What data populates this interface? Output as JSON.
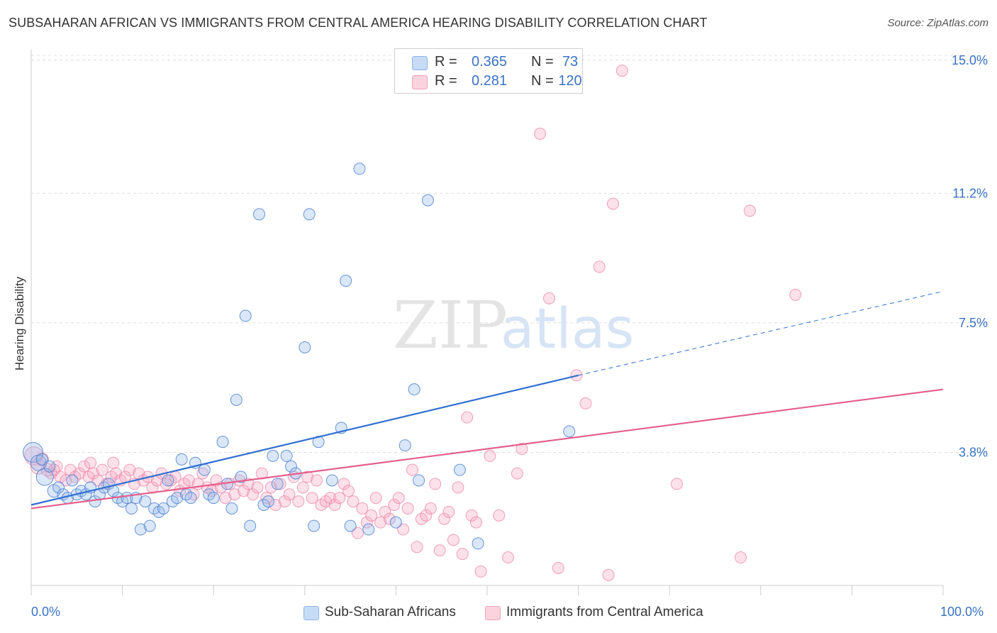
{
  "title": "SUBSAHARAN AFRICAN VS IMMIGRANTS FROM CENTRAL AMERICA HEARING DISABILITY CORRELATION CHART",
  "source": "Source: ZipAtlas.com",
  "watermark": {
    "zip": "ZIP",
    "atlas": "atlas"
  },
  "stats": {
    "row1": {
      "r_label": "R =",
      "r_value": "0.365",
      "n_label": "N =",
      "n_value": "73",
      "color": "#a9c8f0"
    },
    "row2": {
      "r_label": "R =",
      "r_value": "0.281",
      "n_label": "N =",
      "n_value": "120",
      "color": "#f5b8ca"
    }
  },
  "legend": {
    "series1": "Sub-Saharan Africans",
    "series2": "Immigrants from Central America"
  },
  "x_min_label": "0.0%",
  "x_max_label": "100.0%",
  "chart_data": {
    "type": "scatter",
    "title": "SUBSAHARAN AFRICAN VS IMMIGRANTS FROM CENTRAL AMERICA HEARING DISABILITY CORRELATION CHART",
    "xlabel": "",
    "ylabel": "Hearing Disability",
    "xlim": [
      0,
      100
    ],
    "ylim": [
      0,
      15.3
    ],
    "y_ticks": [
      3.8,
      7.5,
      11.2,
      15.0
    ],
    "y_tick_labels": [
      "3.8%",
      "7.5%",
      "11.2%",
      "15.0%"
    ],
    "x_tick_labels": [
      "0.0%",
      "100.0%"
    ],
    "grid": true,
    "legend_position": "bottom",
    "colors": {
      "blue": "#6f9fe0",
      "blue_line": "#2f6fd1",
      "pink": "#f08fb0",
      "pink_line": "#e5608c",
      "axis_label": "#3a72c4"
    },
    "series": [
      {
        "name": "Sub-Saharan Africans",
        "color": "#6f9fe0",
        "trend": {
          "x0": 0,
          "y0": 2.3,
          "x1": 60,
          "y1": 6.0,
          "dash_x1": 100,
          "dash_y1": 8.4
        },
        "points": [
          [
            0.2,
            3.8,
            14
          ],
          [
            0.8,
            3.5,
            11
          ],
          [
            1.5,
            3.1,
            12
          ],
          [
            2.5,
            2.7,
            9
          ],
          [
            3,
            2.8,
            8
          ],
          [
            3.5,
            2.6,
            8
          ],
          [
            4,
            2.5,
            8
          ],
          [
            4.5,
            3.0,
            8
          ],
          [
            5,
            2.6,
            8
          ],
          [
            5.5,
            2.7,
            8
          ],
          [
            6,
            2.6,
            8
          ],
          [
            6.5,
            2.8,
            8
          ],
          [
            7,
            2.4,
            8
          ],
          [
            7.5,
            2.6,
            8
          ],
          [
            8,
            2.8,
            8
          ],
          [
            8.5,
            2.9,
            8
          ],
          [
            9,
            2.7,
            8
          ],
          [
            9.5,
            2.5,
            8
          ],
          [
            10,
            2.4,
            8
          ],
          [
            10.5,
            2.5,
            8
          ],
          [
            11,
            2.2,
            8
          ],
          [
            11.5,
            2.5,
            8
          ],
          [
            12,
            1.6,
            8
          ],
          [
            12.5,
            2.4,
            8
          ],
          [
            13,
            1.7,
            8
          ],
          [
            13.5,
            2.2,
            8
          ],
          [
            14,
            2.1,
            8
          ],
          [
            14.5,
            2.2,
            8
          ],
          [
            15,
            3.0,
            8
          ],
          [
            15.5,
            2.4,
            8
          ],
          [
            16,
            2.5,
            8
          ],
          [
            16.5,
            3.6,
            8
          ],
          [
            17,
            2.6,
            8
          ],
          [
            17.5,
            2.5,
            8
          ],
          [
            18,
            3.5,
            8
          ],
          [
            19,
            3.3,
            8
          ],
          [
            19.5,
            2.6,
            8
          ],
          [
            20,
            2.5,
            8
          ],
          [
            21,
            4.1,
            8
          ],
          [
            21.5,
            2.9,
            8
          ],
          [
            22,
            2.2,
            8
          ],
          [
            22.5,
            5.3,
            8
          ],
          [
            23,
            3.1,
            8
          ],
          [
            23.5,
            7.7,
            8
          ],
          [
            24,
            1.7,
            8
          ],
          [
            25,
            10.6,
            8
          ],
          [
            25.5,
            2.3,
            8
          ],
          [
            26,
            2.4,
            8
          ],
          [
            26.5,
            3.7,
            8
          ],
          [
            27,
            2.9,
            8
          ],
          [
            28,
            3.7,
            8
          ],
          [
            28.5,
            3.4,
            8
          ],
          [
            29,
            3.2,
            8
          ],
          [
            30,
            6.8,
            8
          ],
          [
            30.5,
            10.6,
            8
          ],
          [
            31,
            1.7,
            8
          ],
          [
            31.5,
            4.1,
            8
          ],
          [
            33,
            3.0,
            8
          ],
          [
            34,
            4.5,
            8
          ],
          [
            34.5,
            8.7,
            8
          ],
          [
            35,
            1.7,
            8
          ],
          [
            36,
            11.9,
            8
          ],
          [
            37,
            1.6,
            8
          ],
          [
            40,
            1.8,
            8
          ],
          [
            41,
            4.0,
            8
          ],
          [
            42,
            5.6,
            8
          ],
          [
            42.5,
            3.0,
            8
          ],
          [
            43.5,
            11.0,
            8
          ],
          [
            47,
            3.3,
            8
          ],
          [
            49,
            1.2,
            8
          ],
          [
            59,
            4.4,
            8
          ],
          [
            1.2,
            3.6,
            8
          ],
          [
            2,
            3.4,
            8
          ]
        ]
      },
      {
        "name": "Immigrants from Central America",
        "color": "#f08fb0",
        "trend": {
          "x0": 0,
          "y0": 2.2,
          "x1": 100,
          "y1": 5.6
        },
        "points": [
          [
            0.3,
            3.7,
            13
          ],
          [
            0.8,
            3.4,
            11
          ],
          [
            1.2,
            3.6,
            9
          ],
          [
            1.8,
            3.3,
            9
          ],
          [
            2.2,
            3.2,
            8
          ],
          [
            2.8,
            3.4,
            8
          ],
          [
            3.2,
            3.1,
            8
          ],
          [
            3.8,
            3.0,
            8
          ],
          [
            4.3,
            3.3,
            8
          ],
          [
            4.8,
            3.1,
            8
          ],
          [
            5.3,
            3.2,
            8
          ],
          [
            5.8,
            3.4,
            8
          ],
          [
            6.3,
            3.1,
            8
          ],
          [
            6.8,
            3.2,
            8
          ],
          [
            7.3,
            3.0,
            8
          ],
          [
            7.8,
            3.3,
            8
          ],
          [
            8.3,
            2.9,
            8
          ],
          [
            8.8,
            3.1,
            8
          ],
          [
            9.3,
            3.2,
            8
          ],
          [
            9.8,
            3.0,
            8
          ],
          [
            10.3,
            3.1,
            8
          ],
          [
            10.8,
            3.3,
            8
          ],
          [
            11.3,
            2.9,
            8
          ],
          [
            11.8,
            3.2,
            8
          ],
          [
            12.3,
            3.0,
            8
          ],
          [
            12.8,
            3.1,
            8
          ],
          [
            13.3,
            2.8,
            8
          ],
          [
            13.8,
            3.0,
            8
          ],
          [
            14.3,
            3.2,
            8
          ],
          [
            14.8,
            2.9,
            8
          ],
          [
            15.3,
            3.0,
            8
          ],
          [
            15.8,
            3.1,
            8
          ],
          [
            16.3,
            2.7,
            8
          ],
          [
            16.8,
            2.9,
            8
          ],
          [
            17.3,
            3.0,
            8
          ],
          [
            17.8,
            2.6,
            8
          ],
          [
            18.3,
            2.9,
            8
          ],
          [
            18.8,
            3.2,
            8
          ],
          [
            19.3,
            2.8,
            8
          ],
          [
            19.8,
            2.7,
            8
          ],
          [
            20.3,
            3.0,
            8
          ],
          [
            20.8,
            2.8,
            8
          ],
          [
            21.3,
            2.5,
            8
          ],
          [
            21.8,
            2.9,
            8
          ],
          [
            22.3,
            2.6,
            8
          ],
          [
            22.8,
            3.0,
            8
          ],
          [
            23.3,
            2.7,
            8
          ],
          [
            23.8,
            2.9,
            8
          ],
          [
            24.3,
            2.6,
            8
          ],
          [
            24.8,
            2.8,
            8
          ],
          [
            25.3,
            3.2,
            8
          ],
          [
            25.8,
            2.5,
            8
          ],
          [
            26.3,
            2.8,
            8
          ],
          [
            26.8,
            2.3,
            8
          ],
          [
            27.3,
            2.9,
            8
          ],
          [
            27.8,
            2.4,
            8
          ],
          [
            28.3,
            2.6,
            8
          ],
          [
            28.8,
            3.1,
            8
          ],
          [
            29.3,
            2.4,
            8
          ],
          [
            29.8,
            2.8,
            8
          ],
          [
            30.3,
            3.1,
            8
          ],
          [
            30.8,
            2.5,
            8
          ],
          [
            31.3,
            3.0,
            8
          ],
          [
            31.8,
            2.3,
            8
          ],
          [
            32.3,
            2.4,
            8
          ],
          [
            32.8,
            2.5,
            8
          ],
          [
            33.3,
            2.3,
            8
          ],
          [
            33.8,
            2.5,
            8
          ],
          [
            34.3,
            2.9,
            8
          ],
          [
            34.8,
            2.7,
            8
          ],
          [
            35.3,
            2.4,
            8
          ],
          [
            35.8,
            1.5,
            8
          ],
          [
            36.3,
            2.2,
            8
          ],
          [
            36.8,
            1.8,
            8
          ],
          [
            37.3,
            2.0,
            8
          ],
          [
            37.8,
            2.5,
            8
          ],
          [
            38.3,
            1.8,
            8
          ],
          [
            38.8,
            2.1,
            8
          ],
          [
            39.3,
            1.9,
            8
          ],
          [
            39.8,
            2.3,
            8
          ],
          [
            40.3,
            2.5,
            8
          ],
          [
            40.8,
            1.6,
            8
          ],
          [
            41.3,
            2.2,
            8
          ],
          [
            41.8,
            3.3,
            8
          ],
          [
            42.3,
            1.1,
            8
          ],
          [
            42.8,
            1.9,
            8
          ],
          [
            43.3,
            2.0,
            8
          ],
          [
            43.8,
            2.2,
            8
          ],
          [
            44.3,
            2.9,
            8
          ],
          [
            44.8,
            1.0,
            8
          ],
          [
            45.3,
            1.9,
            8
          ],
          [
            45.8,
            2.1,
            8
          ],
          [
            46.3,
            1.3,
            8
          ],
          [
            46.8,
            2.8,
            8
          ],
          [
            47.3,
            0.9,
            8
          ],
          [
            47.8,
            4.8,
            8
          ],
          [
            48.3,
            2.0,
            8
          ],
          [
            48.8,
            1.8,
            8
          ],
          [
            49.3,
            0.4,
            8
          ],
          [
            50.3,
            3.7,
            8
          ],
          [
            51.3,
            2.0,
            8
          ],
          [
            52.3,
            0.8,
            8
          ],
          [
            53.3,
            3.2,
            8
          ],
          [
            53.8,
            3.9,
            8
          ],
          [
            55.8,
            12.9,
            8
          ],
          [
            56.8,
            8.2,
            8
          ],
          [
            57.8,
            0.5,
            8
          ],
          [
            59.8,
            6.0,
            8
          ],
          [
            60.8,
            5.2,
            8
          ],
          [
            62.3,
            9.1,
            8
          ],
          [
            63.3,
            0.3,
            8
          ],
          [
            63.8,
            10.9,
            8
          ],
          [
            64.8,
            14.7,
            8
          ],
          [
            70.8,
            2.9,
            8
          ],
          [
            77.8,
            0.8,
            8
          ],
          [
            78.8,
            10.7,
            8
          ],
          [
            83.8,
            8.3,
            8
          ],
          [
            2.5,
            3.3,
            8
          ],
          [
            6.5,
            3.5,
            8
          ],
          [
            9.0,
            3.5,
            8
          ]
        ]
      }
    ]
  }
}
